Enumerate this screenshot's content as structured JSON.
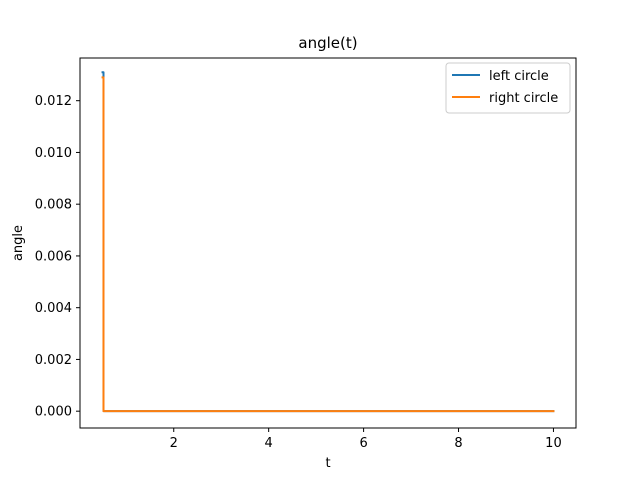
{
  "chart_data": {
    "type": "line",
    "title": "angle(t)",
    "xlabel": "t",
    "ylabel": "angle",
    "xlim": [
      0.025,
      10.475
    ],
    "ylim": [
      -0.00065,
      0.01365
    ],
    "x_ticks": [
      2,
      4,
      6,
      8,
      10
    ],
    "y_ticks": [
      0.0,
      0.002,
      0.004,
      0.006,
      0.008,
      0.01,
      0.012
    ],
    "x_tick_labels": [
      "2",
      "4",
      "6",
      "8",
      "10"
    ],
    "y_tick_labels": [
      "0.000",
      "0.002",
      "0.004",
      "0.006",
      "0.008",
      "0.010",
      "0.012"
    ],
    "grid": false,
    "legend_position": "upper-right",
    "series": [
      {
        "name": "left circle",
        "color": "#1f77b4",
        "x": [
          0.5,
          0.52,
          0.52,
          10
        ],
        "y": [
          0.0131,
          0.0131,
          0.0,
          0.0
        ]
      },
      {
        "name": "right circle",
        "color": "#ff7f0e",
        "x": [
          0.5,
          0.52,
          0.52,
          10
        ],
        "y": [
          0.0129,
          0.0129,
          0.0,
          0.0
        ]
      }
    ]
  }
}
